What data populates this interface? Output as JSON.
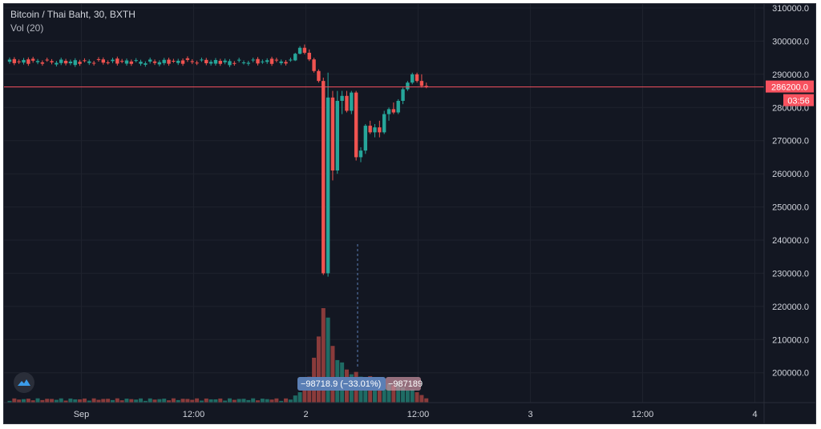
{
  "legend": {
    "title": "Bitcoin / Thai Baht, 30, BXTH",
    "volume": "Vol (20)"
  },
  "price_label": {
    "price": "286200.0",
    "countdown": "03:56",
    "color": "#f7525f"
  },
  "measure": {
    "text_a": "−98718.9 (−33.01%)",
    "text_b": "−987189"
  },
  "colors": {
    "background": "#131722",
    "grid": "#1e222d",
    "up": "#26a69a",
    "down": "#ef5350",
    "vol_up": "#1f6b64",
    "vol_down": "#8a3b3b",
    "price_line": "#f7525f",
    "measure_bg": "#5b7fb5"
  },
  "icons": {
    "logo": "tradingview-logo-icon"
  },
  "chart_data": {
    "type": "candlestick",
    "title": "Bitcoin / Thai Baht, 30, BXTH",
    "ylim": [
      191000,
      310000
    ],
    "y_ticks": [
      200000,
      210000,
      220000,
      230000,
      240000,
      250000,
      260000,
      270000,
      280000,
      290000,
      300000,
      310000
    ],
    "y_tick_labels": [
      "200000.0",
      "210000.0",
      "220000.0",
      "230000.0",
      "240000.0",
      "250000.0",
      "260000.0",
      "270000.0",
      "280000.0",
      "290000.0",
      "300000.0",
      "310000.0"
    ],
    "x_tick_labels": [
      "Sep",
      "12:00",
      "2",
      "12:00",
      "3",
      "12:00",
      "4"
    ],
    "grid": true,
    "last_price": 286200,
    "candles_flat": {
      "count": 61,
      "level": 293800,
      "range": 1300
    },
    "candles": [
      {
        "o": 294200,
        "h": 296500,
        "l": 294000,
        "c": 296200
      },
      {
        "o": 296200,
        "h": 298500,
        "l": 296000,
        "c": 298000
      },
      {
        "o": 298000,
        "h": 299000,
        "l": 296000,
        "c": 296500
      },
      {
        "o": 296500,
        "h": 297500,
        "l": 294000,
        "c": 294500
      },
      {
        "o": 294500,
        "h": 295000,
        "l": 290500,
        "c": 291000
      },
      {
        "o": 291000,
        "h": 291500,
        "l": 287500,
        "c": 288000
      },
      {
        "o": 288000,
        "h": 289000,
        "l": 229500,
        "c": 230000
      },
      {
        "o": 230000,
        "h": 290500,
        "l": 229000,
        "c": 283000
      },
      {
        "o": 283000,
        "h": 285000,
        "l": 258000,
        "c": 261000
      },
      {
        "o": 261000,
        "h": 285000,
        "l": 260000,
        "c": 282000
      },
      {
        "o": 282000,
        "h": 285000,
        "l": 278000,
        "c": 283500
      },
      {
        "o": 283500,
        "h": 285000,
        "l": 278500,
        "c": 279000
      },
      {
        "o": 279000,
        "h": 285000,
        "l": 278000,
        "c": 284500
      },
      {
        "o": 284500,
        "h": 285000,
        "l": 264000,
        "c": 265000
      },
      {
        "o": 265000,
        "h": 268000,
        "l": 263500,
        "c": 267000
      },
      {
        "o": 267000,
        "h": 275000,
        "l": 266000,
        "c": 274500
      },
      {
        "o": 274500,
        "h": 276000,
        "l": 272000,
        "c": 272500
      },
      {
        "o": 272500,
        "h": 275000,
        "l": 271000,
        "c": 274000
      },
      {
        "o": 274000,
        "h": 276000,
        "l": 271000,
        "c": 272500
      },
      {
        "o": 272500,
        "h": 279000,
        "l": 272000,
        "c": 278000
      },
      {
        "o": 278000,
        "h": 280000,
        "l": 276000,
        "c": 279500
      },
      {
        "o": 279500,
        "h": 281500,
        "l": 278000,
        "c": 278500
      },
      {
        "o": 278500,
        "h": 282500,
        "l": 278000,
        "c": 282000
      },
      {
        "o": 282000,
        "h": 286000,
        "l": 281000,
        "c": 285500
      },
      {
        "o": 285500,
        "h": 288000,
        "l": 285000,
        "c": 287500
      },
      {
        "o": 287500,
        "h": 290500,
        "l": 287000,
        "c": 290000
      },
      {
        "o": 290000,
        "h": 290500,
        "l": 287500,
        "c": 288000
      },
      {
        "o": 288000,
        "h": 290000,
        "l": 286000,
        "c": 286500
      },
      {
        "o": 286500,
        "h": 287500,
        "l": 285800,
        "c": 286200
      }
    ],
    "volume_flat": {
      "count": 61,
      "max": 0.9
    },
    "volume_scale": [
      0,
      20
    ],
    "volumes": [
      1.5,
      2.2,
      3.2,
      5.5,
      9.5,
      14,
      20,
      18,
      12,
      9,
      8.5,
      7,
      6,
      6.5,
      5.5,
      4,
      5.6,
      4.4,
      4.8,
      3,
      4,
      3.6,
      4.4,
      3.2,
      2.6,
      2.8,
      2.2,
      1.6,
      0.9
    ]
  }
}
